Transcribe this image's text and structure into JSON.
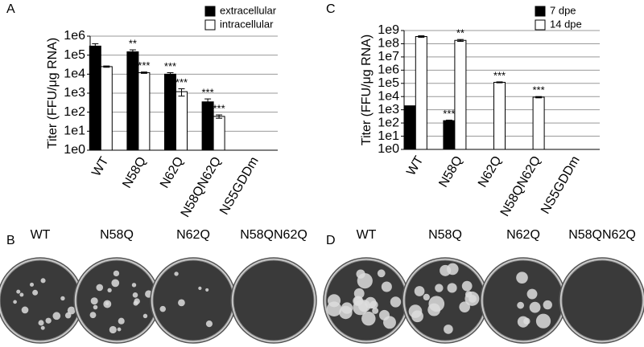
{
  "chart_data": [
    {
      "type": "bar",
      "panel": "A",
      "y_label": "Titer (FFU/μg RNA)",
      "log_scale": true,
      "grid": true,
      "legend": "top-right",
      "categories": [
        "WT",
        "N58Q",
        "N62Q",
        "N58QN62Q",
        "NS5GDDm"
      ],
      "ylim": [
        1,
        1000000
      ],
      "yticks": [
        {
          "value": 1,
          "label": "1e0"
        },
        {
          "value": 10,
          "label": "1e1"
        },
        {
          "value": 100,
          "label": "1e2"
        },
        {
          "value": 1000,
          "label": "1e3"
        },
        {
          "value": 10000,
          "label": "1e4"
        },
        {
          "value": 100000,
          "label": "1e5"
        },
        {
          "value": 1000000,
          "label": "1e6"
        }
      ],
      "series": [
        {
          "name": "extracellular",
          "color": "#000000",
          "values": [
            300000,
            150000,
            10000,
            350,
            null
          ],
          "errors": [
            100000,
            40000,
            2000,
            150,
            null
          ],
          "significance": [
            null,
            "**",
            "***",
            "***",
            null
          ]
        },
        {
          "name": "intracellular",
          "color": "#ffffff",
          "values": [
            25000,
            12000,
            1200,
            60,
            null
          ],
          "errors": [
            2000,
            1000,
            500,
            12,
            null
          ],
          "significance": [
            null,
            "***",
            "***",
            "***",
            null
          ]
        }
      ]
    },
    {
      "type": "bar",
      "panel": "C",
      "y_label": "Titer (FFU/μg RNA)",
      "log_scale": true,
      "grid": true,
      "legend": "top-right",
      "categories": [
        "WT",
        "N58Q",
        "N62Q",
        "N58QN62Q",
        "NS5GDDm"
      ],
      "ylim": [
        1,
        1000000000
      ],
      "yticks": [
        {
          "value": 1,
          "label": "1e0"
        },
        {
          "value": 10,
          "label": "1e1"
        },
        {
          "value": 100,
          "label": "1e2"
        },
        {
          "value": 1000,
          "label": "1e3"
        },
        {
          "value": 10000,
          "label": "1e4"
        },
        {
          "value": 100000,
          "label": "1e5"
        },
        {
          "value": 1000000,
          "label": "1e6"
        },
        {
          "value": 10000000,
          "label": "1e7"
        },
        {
          "value": 100000000,
          "label": "1e8"
        },
        {
          "value": 1000000000,
          "label": "1e9"
        }
      ],
      "series": [
        {
          "name": "7 dpe",
          "color": "#000000",
          "values": [
            2000,
            150,
            null,
            null,
            null
          ],
          "errors": [
            null,
            15,
            null,
            null,
            null
          ],
          "significance": [
            null,
            "***",
            null,
            null,
            null
          ]
        },
        {
          "name": "14 dpe",
          "color": "#ffffff",
          "values": [
            350000000,
            180000000,
            120000,
            9000,
            null
          ],
          "errors": [
            50000000,
            30000000,
            10000,
            1000,
            null
          ],
          "significance": [
            null,
            "**",
            "***",
            "***",
            null
          ]
        }
      ]
    }
  ],
  "plates": [
    {
      "panel": "B",
      "labels": [
        "WT",
        "N58Q",
        "N62Q",
        "N58QN62Q"
      ]
    },
    {
      "panel": "D",
      "labels": [
        "WT",
        "N58Q",
        "N62Q",
        "N58QN62Q"
      ]
    }
  ]
}
